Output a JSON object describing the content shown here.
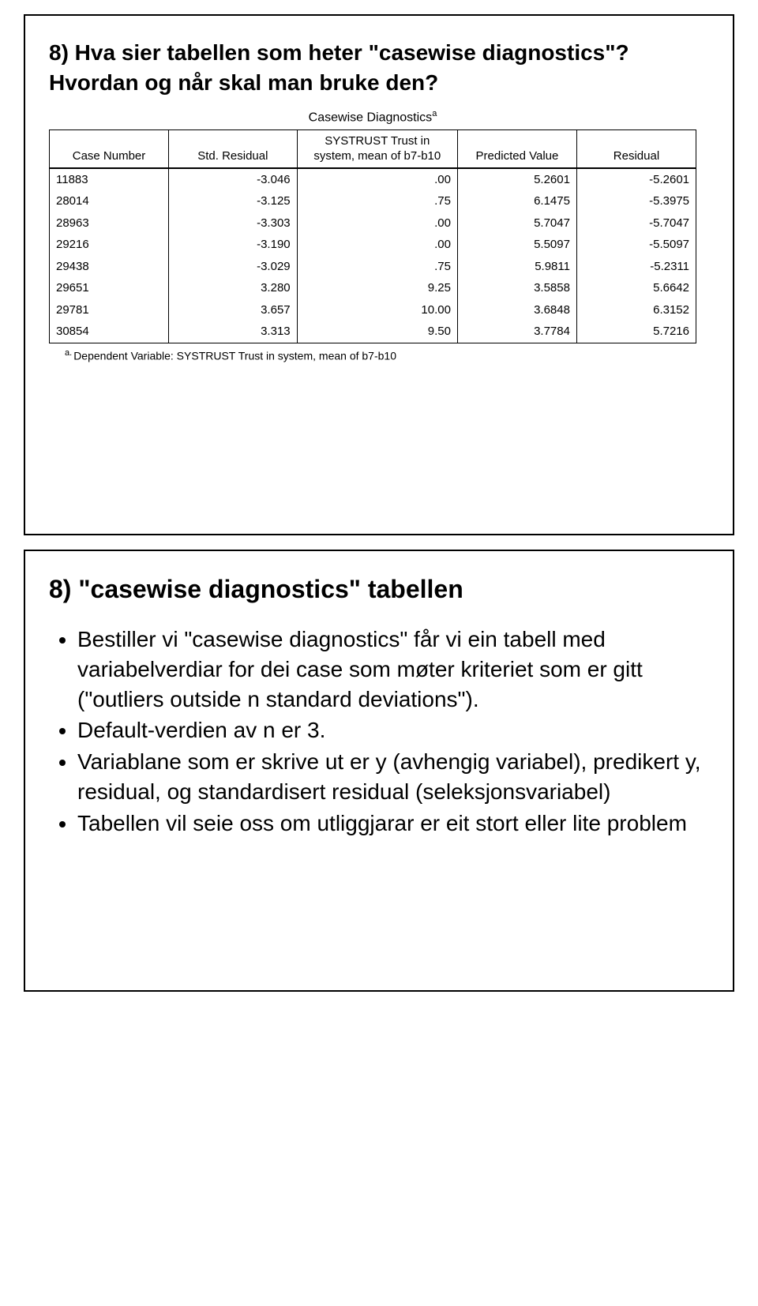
{
  "slide1": {
    "question": "8) Hva sier tabellen som heter \"casewise diagnostics\"? Hvordan og når skal man bruke den?",
    "table": {
      "title": "Casewise Diagnostics",
      "title_sup": "a",
      "columns": [
        "Case Number",
        "Std. Residual",
        "SYSTRUST Trust in system, mean of b7-b10",
        "Predicted Value",
        "Residual"
      ],
      "rows": [
        [
          "11883",
          "-3.046",
          ".00",
          "5.2601",
          "-5.2601"
        ],
        [
          "28014",
          "-3.125",
          ".75",
          "6.1475",
          "-5.3975"
        ],
        [
          "28963",
          "-3.303",
          ".00",
          "5.7047",
          "-5.7047"
        ],
        [
          "29216",
          "-3.190",
          ".00",
          "5.5097",
          "-5.5097"
        ],
        [
          "29438",
          "-3.029",
          ".75",
          "5.9811",
          "-5.2311"
        ],
        [
          "29651",
          "3.280",
          "9.25",
          "3.5858",
          "5.6642"
        ],
        [
          "29781",
          "3.657",
          "10.00",
          "3.6848",
          "6.3152"
        ],
        [
          "30854",
          "3.313",
          "9.50",
          "3.7784",
          "5.7216"
        ]
      ],
      "footnote_sup": "a.",
      "footnote": "Dependent Variable: SYSTRUST  Trust in system, mean of b7-b10",
      "col_widths": [
        "130",
        "140",
        "175",
        "130",
        "130"
      ],
      "border_color": "#000000",
      "font_size": 15
    }
  },
  "slide2": {
    "heading": "8) \"casewise diagnostics\" tabellen",
    "bullets": [
      "Bestiller vi \"casewise diagnostics\" får vi ein tabell med variabelverdiar for dei case som møter kriteriet som er gitt (\"outliers outside n standard deviations\").",
      "Default-verdien av n er 3.",
      "Variablane som er skrive ut er y (avhengig variabel), predikert y, residual, og standardisert residual (seleksjonsvariabel)",
      "Tabellen vil seie oss om utliggjarar er eit stort eller lite problem"
    ]
  }
}
